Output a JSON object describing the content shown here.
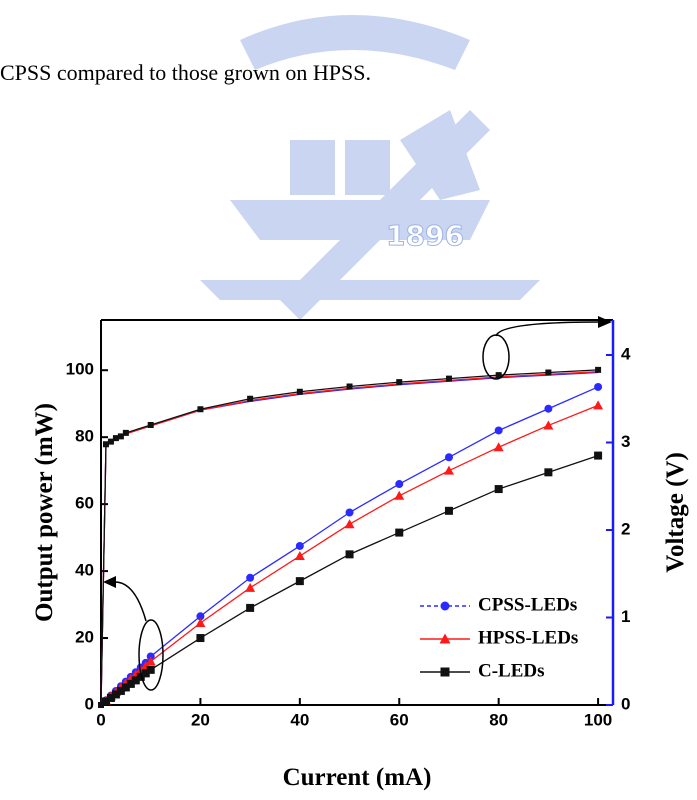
{
  "text": "CPSS compared to those grown on HPSS.",
  "watermark": {
    "year": "1896"
  },
  "chart_data": {
    "type": "line",
    "x_label": "Current (mA)",
    "y_label": "Output power (mW)",
    "y2_label": "Voltage (V)",
    "xlim": [
      0,
      103
    ],
    "ylim": [
      0,
      115
    ],
    "y2lim": [
      0,
      4.4
    ],
    "xticks": [
      0,
      20,
      40,
      60,
      80,
      100
    ],
    "yticks": [
      0,
      20,
      40,
      60,
      80,
      100
    ],
    "y2ticks": [
      0,
      1,
      2,
      3,
      4
    ],
    "y2_color": "#1a1aff",
    "legend": "lower right",
    "series": [
      {
        "name": "CPSS-LEDs",
        "color": "#2b2bff",
        "marker": "circle",
        "x": [
          1,
          2,
          3,
          4,
          5,
          6,
          7,
          8,
          9,
          10,
          20,
          30,
          40,
          50,
          60,
          70,
          80,
          90,
          100
        ],
        "values": [
          1.4,
          2.8,
          4.2,
          5.6,
          7,
          8.4,
          9.8,
          11.2,
          12.6,
          14.5,
          26.5,
          38,
          47.5,
          57.5,
          66,
          74,
          82,
          88.5,
          95
        ]
      },
      {
        "name": "HPSS-LEDs",
        "color": "#ff1a1a",
        "marker": "triangle",
        "x": [
          1,
          2,
          3,
          4,
          5,
          6,
          7,
          8,
          9,
          10,
          20,
          30,
          40,
          50,
          60,
          70,
          80,
          90,
          100
        ],
        "values": [
          1.3,
          2.6,
          3.9,
          5.2,
          6.5,
          7.8,
          9.1,
          10.4,
          11.7,
          13,
          24.5,
          35,
          44.5,
          54,
          62.5,
          70,
          77,
          83.5,
          89.5
        ]
      },
      {
        "name": "C-LEDs",
        "color": "#111111",
        "marker": "square",
        "x": [
          1,
          2,
          3,
          4,
          5,
          6,
          7,
          8,
          9,
          10,
          20,
          30,
          40,
          50,
          60,
          70,
          80,
          90,
          100
        ],
        "values": [
          1.05,
          2.1,
          3.15,
          4.2,
          5.25,
          6.3,
          7.35,
          8.4,
          9.45,
          10.5,
          20,
          29,
          37,
          45,
          51.5,
          58,
          64.5,
          69.5,
          74.5
        ]
      },
      {
        "color": "#2b2bff",
        "axis": "y2",
        "x": [
          0,
          1,
          2,
          3,
          4,
          5,
          10,
          20,
          30,
          40,
          50,
          60,
          70,
          80,
          90,
          100
        ],
        "values": [
          0,
          2.97,
          3.0,
          3.04,
          3.06,
          3.1,
          3.19,
          3.37,
          3.47,
          3.55,
          3.61,
          3.66,
          3.7,
          3.74,
          3.77,
          3.8
        ]
      },
      {
        "color": "#ff1a1a",
        "axis": "y2",
        "x": [
          0,
          1,
          2,
          3,
          4,
          5,
          10,
          20,
          30,
          40,
          50,
          60,
          70,
          80,
          90,
          100
        ],
        "values": [
          0,
          2.97,
          3.0,
          3.04,
          3.06,
          3.1,
          3.19,
          3.37,
          3.48,
          3.56,
          3.62,
          3.67,
          3.71,
          3.75,
          3.78,
          3.81
        ]
      },
      {
        "color": "#111111",
        "axis": "y2",
        "marker": "square",
        "x": [
          0,
          1,
          2,
          3,
          4,
          5,
          10,
          20,
          30,
          40,
          50,
          60,
          70,
          80,
          90,
          100
        ],
        "values": [
          0,
          2.98,
          3.01,
          3.05,
          3.07,
          3.11,
          3.2,
          3.38,
          3.5,
          3.58,
          3.64,
          3.69,
          3.73,
          3.77,
          3.8,
          3.83
        ]
      }
    ]
  }
}
